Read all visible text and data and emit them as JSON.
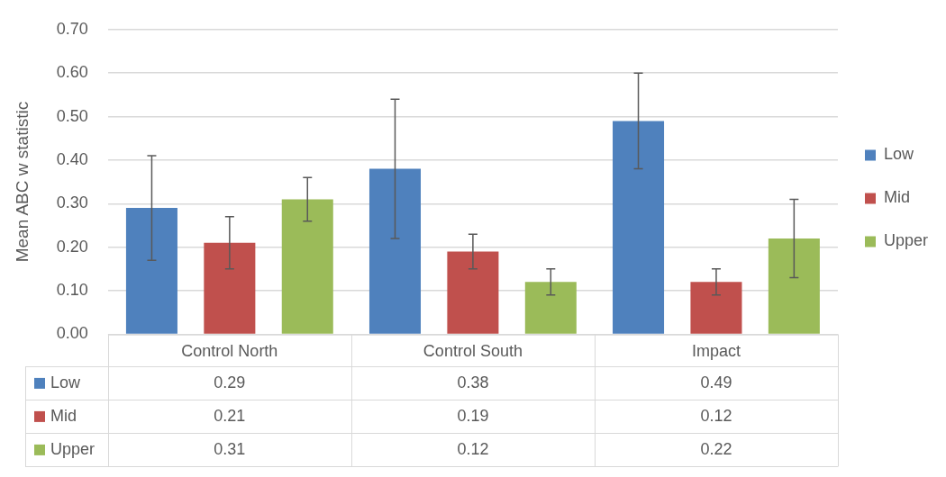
{
  "chart_data": {
    "type": "bar",
    "ylabel": "Mean ABC w statistic",
    "categories": [
      "Control North",
      "Control South",
      "Impact"
    ],
    "series": [
      {
        "name": "Low",
        "color": "#4f81bd",
        "values": [
          0.29,
          0.38,
          0.49
        ],
        "errors": [
          0.12,
          0.16,
          0.11
        ]
      },
      {
        "name": "Mid",
        "color": "#c0504d",
        "values": [
          0.21,
          0.19,
          0.12
        ],
        "errors": [
          0.06,
          0.04,
          0.03
        ]
      },
      {
        "name": "Upper",
        "color": "#9bbb59",
        "values": [
          0.31,
          0.12,
          0.22
        ],
        "errors": [
          0.05,
          0.03,
          0.09
        ]
      }
    ],
    "ylim": [
      0,
      0.7
    ],
    "yticks": [
      {
        "value": 0,
        "label": "0.00"
      },
      {
        "value": 0.1,
        "label": "0.10"
      },
      {
        "value": 0.2,
        "label": "0.20"
      },
      {
        "value": 0.3,
        "label": "0.30"
      },
      {
        "value": 0.4,
        "label": "0.40"
      },
      {
        "value": 0.5,
        "label": "0.50"
      },
      {
        "value": 0.6,
        "label": "0.60"
      },
      {
        "value": 0.7,
        "label": "0.70"
      }
    ],
    "grid": "y",
    "legend": "right",
    "data_labels": true
  }
}
